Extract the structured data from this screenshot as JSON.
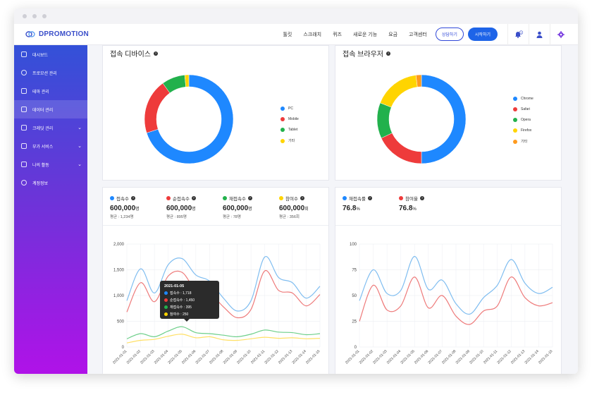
{
  "app": {
    "logo": "DPROMOTION"
  },
  "nav": {
    "items": [
      "툴킷",
      "스크래치",
      "퀴즈",
      "새로운 기능",
      "요금",
      "고객센터"
    ],
    "btn_consult": "상담하기",
    "btn_start": "시작하기",
    "notif_count": "1"
  },
  "sidebar": {
    "items": [
      {
        "label": "대시보드"
      },
      {
        "label": "프로모션 관리"
      },
      {
        "label": "테마 관리"
      },
      {
        "label": "데이터 관리"
      },
      {
        "label": "크레딧 관리"
      },
      {
        "label": "부가 서비스"
      },
      {
        "label": "나의 활동"
      },
      {
        "label": "계정정보"
      }
    ]
  },
  "device_card": {
    "title": "접속 디바이스"
  },
  "browser_card": {
    "title": "접속 브라우저"
  },
  "stats_left": [
    {
      "label": "접속수",
      "value": "600,000",
      "unit": "명",
      "sub": "평균 : 1,234명",
      "color": "#1e88ff"
    },
    {
      "label": "순접속수",
      "value": "600,000",
      "unit": "명",
      "sub": "평균 : 895명",
      "color": "#ee3b3b"
    },
    {
      "label": "재접속수",
      "value": "600,000",
      "unit": "명",
      "sub": "평균 : 78명",
      "color": "#22b14c"
    },
    {
      "label": "참여수",
      "value": "600,000",
      "unit": "회",
      "sub": "평균 : 356회",
      "color": "#ffd400"
    }
  ],
  "stats_right": [
    {
      "label": "재접속률",
      "value": "76.8",
      "unit": "%",
      "color": "#1e88ff"
    },
    {
      "label": "참여율",
      "value": "76.8",
      "unit": "%",
      "color": "#ee3b3b"
    }
  ],
  "tooltip": {
    "date": "2021-01-05",
    "rows": [
      {
        "text": "접속수 : 1,718",
        "color": "#1e88ff"
      },
      {
        "text": "순접속수 : 1,450",
        "color": "#ee3b3b"
      },
      {
        "text": "재접속수 : 395",
        "color": "#22b14c"
      },
      {
        "text": "참여수 : 250",
        "color": "#ffd400"
      }
    ]
  },
  "chart_data": [
    {
      "type": "pie",
      "title": "접속 디바이스",
      "categories": [
        "PC",
        "Mobile",
        "Tablet",
        "기타"
      ],
      "values": [
        70,
        20,
        8.5,
        1.5
      ],
      "colors": [
        "#1e88ff",
        "#ee3b3b",
        "#22b14c",
        "#ffd400"
      ],
      "legend": "right"
    },
    {
      "type": "pie",
      "title": "접속 브라우저",
      "categories": [
        "Chrome",
        "Safari",
        "Opera",
        "Firefox",
        "기타"
      ],
      "values": [
        50,
        18,
        13,
        17,
        2
      ],
      "colors": [
        "#1e88ff",
        "#ee3b3b",
        "#22b14c",
        "#ffd400",
        "#ff9a1e"
      ],
      "legend": "right"
    },
    {
      "type": "line",
      "x": [
        "2021-01-01",
        "2021-01-02",
        "2021-01-03",
        "2021-01-04",
        "2021-01-05",
        "2021-01-06",
        "2021-01-07",
        "2021-01-08",
        "2021-01-09",
        "2021-01-10",
        "2021-01-11",
        "2021-01-12",
        "2021-01-13",
        "2021-01-14",
        "2021-01-15"
      ],
      "ylim": [
        0,
        2000
      ],
      "yticks": [
        0,
        500,
        1000,
        1500,
        2000
      ],
      "ytick_labels": [
        "0",
        "500",
        "1,000",
        "1,500",
        "2,000"
      ],
      "grid": true,
      "series": [
        {
          "name": "접속수",
          "color": "#7fbdf0",
          "values": [
            900,
            1520,
            1050,
            1600,
            1718,
            1400,
            1280,
            950,
            700,
            900,
            1750,
            1350,
            1250,
            950,
            1180
          ]
        },
        {
          "name": "순접속수",
          "color": "#ee7a7a",
          "values": [
            680,
            1250,
            880,
            1380,
            1450,
            1100,
            1050,
            780,
            570,
            730,
            1480,
            1100,
            1050,
            800,
            1020
          ]
        },
        {
          "name": "재접속수",
          "color": "#6ecf8a",
          "values": [
            160,
            260,
            200,
            310,
            395,
            280,
            260,
            230,
            200,
            250,
            330,
            290,
            280,
            240,
            260
          ]
        },
        {
          "name": "참여수",
          "color": "#ffe066",
          "values": [
            80,
            130,
            150,
            210,
            250,
            180,
            200,
            140,
            130,
            160,
            190,
            170,
            180,
            160,
            170
          ]
        }
      ]
    },
    {
      "type": "line",
      "x": [
        "2021-01-01",
        "2021-01-02",
        "2021-01-03",
        "2021-01-04",
        "2021-01-05",
        "2021-01-06",
        "2021-01-07",
        "2021-01-08",
        "2021-01-09",
        "2021-01-10",
        "2021-01-11",
        "2021-01-12",
        "2021-01-13",
        "2021-01-14",
        "2021-01-15"
      ],
      "ylim": [
        0,
        100
      ],
      "yticks": [
        0,
        25,
        50,
        75,
        100
      ],
      "ytick_labels": [
        "0",
        "25",
        "50",
        "75",
        "100"
      ],
      "grid": true,
      "series": [
        {
          "name": "재접속률",
          "color": "#7fbdf0",
          "values": [
            45,
            75,
            52,
            55,
            88,
            56,
            65,
            42,
            32,
            48,
            60,
            85,
            62,
            52,
            58
          ]
        },
        {
          "name": "참여율",
          "color": "#ee7a7a",
          "values": [
            25,
            60,
            36,
            40,
            68,
            38,
            50,
            30,
            22,
            35,
            40,
            68,
            48,
            40,
            43
          ]
        }
      ]
    }
  ]
}
